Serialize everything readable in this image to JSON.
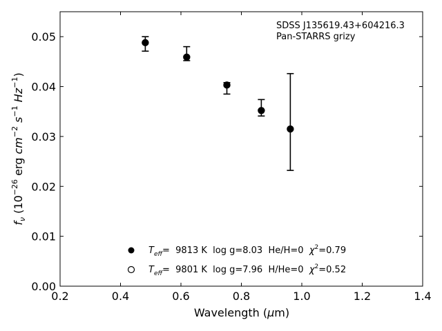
{
  "chart_data": {
    "type": "scatter",
    "annotation_lines": [
      "SDSS J135619.43+604216.3",
      "Pan-STARRS grizy"
    ],
    "xlabel": {
      "base": "Wavelength (",
      "mu": "μ",
      "rest": "m)"
    },
    "ylabel": {
      "f": "f",
      "nu": "ν",
      "unit_a": " (10",
      "exp_a": "−26",
      "unit_b": " erg ",
      "cm": "cm",
      "exp_b": "−2",
      "s": " s",
      "exp_c": "−1",
      "hz": " Hz",
      "exp_d": "−1",
      "close": ")"
    },
    "xlim": [
      0.2,
      1.4
    ],
    "ylim": [
      0.0,
      0.055
    ],
    "xticks": [
      0.2,
      0.4,
      0.6,
      0.8,
      1.0,
      1.2,
      1.4
    ],
    "xtick_labels": [
      "0.2",
      "0.4",
      "0.6",
      "0.8",
      "1.0",
      "1.2",
      "1.4"
    ],
    "yticks": [
      0.0,
      0.01,
      0.02,
      0.03,
      0.04,
      0.05
    ],
    "ytick_labels": [
      "0.00",
      "0.01",
      "0.02",
      "0.03",
      "0.04",
      "0.05"
    ],
    "grid": false,
    "series": [
      {
        "marker": "filled-circle",
        "color": "#000000",
        "x": [
          0.482,
          0.619,
          0.752,
          0.866,
          0.962
        ],
        "y": [
          0.0488,
          0.0459,
          0.0403,
          0.0352,
          0.0315
        ],
        "yerr_low": [
          0.0017,
          0.0007,
          0.0018,
          0.0011,
          0.0083
        ],
        "yerr_high": [
          0.0012,
          0.0021,
          0.0005,
          0.0022,
          0.0111
        ]
      },
      {
        "marker": "open-circle",
        "color": "#000000",
        "x": [
          0.482,
          0.619,
          0.752,
          0.866,
          0.962
        ],
        "y": [
          0.0488,
          0.0459,
          0.0403,
          0.0352,
          0.0315
        ]
      }
    ],
    "legend_position": "lower-center",
    "legend": [
      {
        "marker": "filled-circle",
        "T": "T",
        "eff": "eff",
        "text": "=  9813 K  log g=8.03  He/H=0  ",
        "chi": "χ",
        "two": "2",
        "chival": "=0.79"
      },
      {
        "marker": "open-circle",
        "T": "T",
        "eff": "eff",
        "text": "=  9801 K  log g=7.96  H/He=0  ",
        "chi": "χ",
        "two": "2",
        "chival": "=0.52"
      }
    ]
  }
}
